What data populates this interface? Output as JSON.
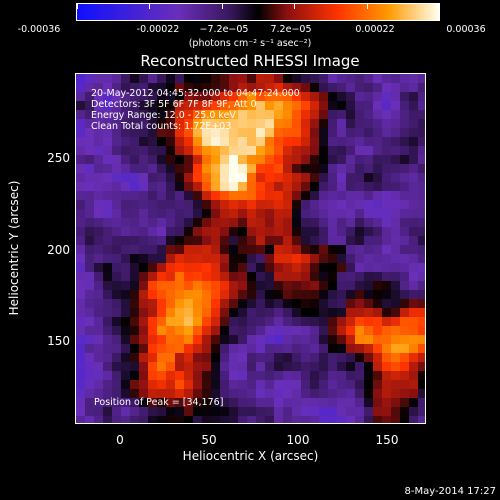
{
  "colorbar": {
    "tick_labels": [
      "-0.00036",
      "-0.00022",
      "−7.2e−05",
      "7.2e−05",
      "0.00022",
      "0.00036"
    ],
    "unit_label": "(photons cm⁻² s⁻¹ asec⁻²)"
  },
  "title": "Reconstructed RHESSI Image",
  "annotations": {
    "time_range": "20-May-2012 04:45:32.000 to 04:47:24.000",
    "detectors": "Detectors: 3F 5F 6F 7F 8F 9F, Att 0",
    "energy_range": "Energy Range: 12.0 - 25.0 keV",
    "method_counts": "Clean    Total counts: 1.72E+03",
    "peak_position": "Position of Peak = [34,176]"
  },
  "x_axis": {
    "label": "Heliocentric X (arcsec)",
    "ticks": [
      "0",
      "50",
      "100",
      "150"
    ]
  },
  "y_axis": {
    "label": "Heliocentric Y (arcsec)",
    "ticks": [
      "250",
      "200",
      "150"
    ]
  },
  "footer_date": "8-May-2014 17:27",
  "colors": {
    "low": "#1010ff",
    "mid": "#000000",
    "high": "#fffff0"
  }
}
